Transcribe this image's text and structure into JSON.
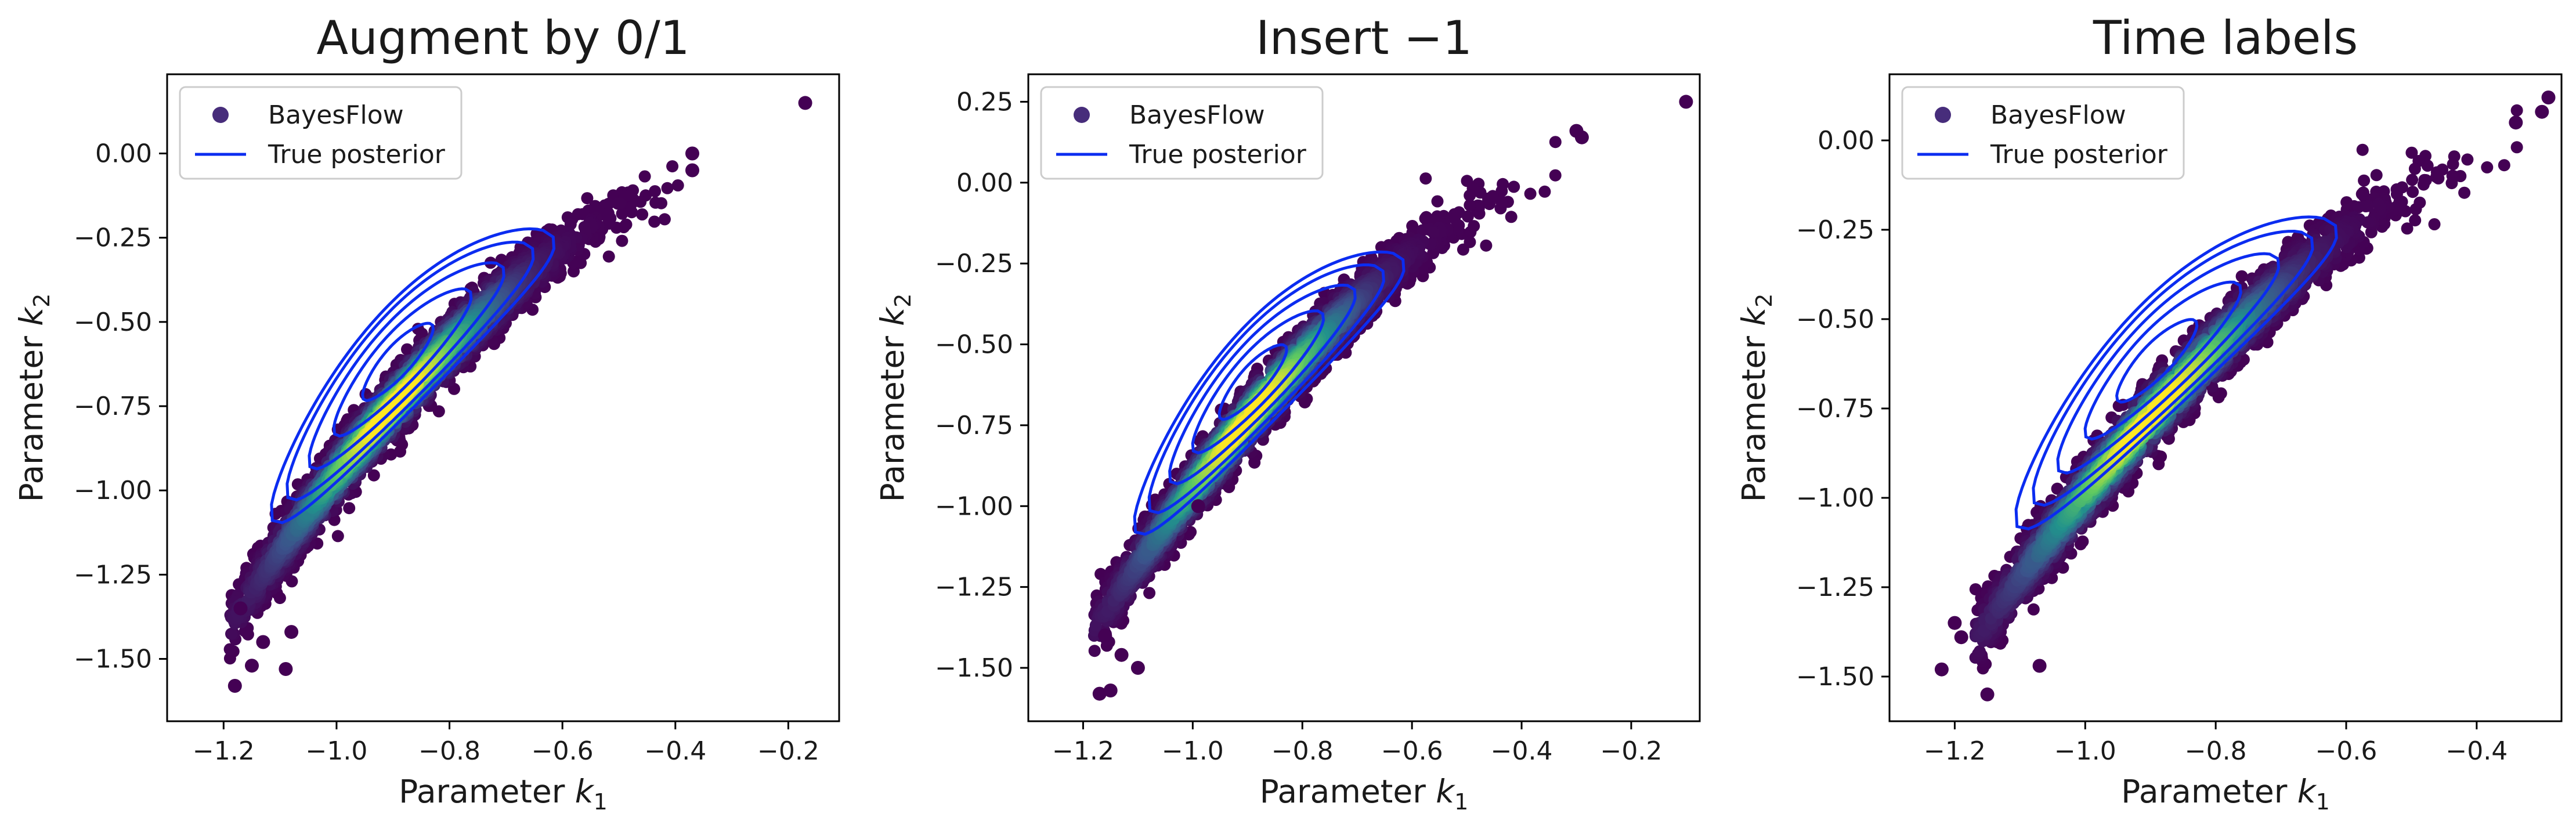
{
  "figure": {
    "legend_position": "upper-left",
    "density_colormap": [
      "#440154",
      "#3b528b",
      "#21918c",
      "#5ec962",
      "#fde725"
    ],
    "contour_color": "#0b2cf0"
  },
  "chart_data": [
    {
      "type": "scatter",
      "title": "Augment by 0/1",
      "xlabel_text": "Parameter ",
      "xlabel_sub": "k",
      "xlabel_subidx": "1",
      "ylabel_text": "Parameter ",
      "ylabel_sub": "k",
      "ylabel_subidx": "2",
      "xlim": [
        -1.3,
        -0.11
      ],
      "ylim": [
        -1.685,
        0.235
      ],
      "xticks": [
        -1.2,
        -1.0,
        -0.8,
        -0.6,
        -0.4,
        -0.2
      ],
      "xtick_labels": [
        "−1.2",
        "−1.0",
        "−0.8",
        "−0.6",
        "−0.4",
        "−0.2"
      ],
      "yticks": [
        0.0,
        -0.25,
        -0.5,
        -0.75,
        -1.0,
        -1.25,
        -1.5
      ],
      "ytick_labels": [
        "0.00",
        "−0.25",
        "−0.50",
        "−0.75",
        "−1.00",
        "−1.25",
        "−1.50"
      ],
      "legend": [
        "BayesFlow",
        "True posterior"
      ],
      "series": [
        {
          "name": "BayesFlow",
          "kind": "points",
          "band": {
            "x_start": -1.19,
            "x_end": -0.36,
            "center_start": -1.4,
            "center_end": -0.05,
            "curvature": 0.58,
            "half_width": 0.085
          },
          "outliers": [
            [
              -0.17,
              0.15
            ],
            [
              -0.37,
              0.0
            ],
            [
              -0.37,
              -0.05
            ],
            [
              -1.18,
              -1.58
            ],
            [
              -1.15,
              -1.52
            ],
            [
              -1.13,
              -1.45
            ],
            [
              -1.09,
              -1.53
            ],
            [
              -1.17,
              -1.35
            ],
            [
              -1.08,
              -1.42
            ]
          ]
        },
        {
          "name": "True posterior",
          "kind": "contours",
          "curve": {
            "x_start": -1.13,
            "x_end": -0.595,
            "center_start": -1.13,
            "center_end": -0.23,
            "curvature": 0.52,
            "peak_x": -0.9
          },
          "levels": [
            0.07,
            0.19,
            0.36,
            0.55,
            0.77
          ]
        }
      ]
    },
    {
      "type": "scatter",
      "title": "Insert −1",
      "xlabel_text": "Parameter ",
      "xlabel_sub": "k",
      "xlabel_subidx": "1",
      "ylabel_text": "Parameter ",
      "ylabel_sub": "k",
      "ylabel_subidx": "2",
      "xlim": [
        -1.3,
        -0.075
      ],
      "ylim": [
        -1.665,
        0.335
      ],
      "xticks": [
        -1.2,
        -1.0,
        -0.8,
        -0.6,
        -0.4,
        -0.2
      ],
      "xtick_labels": [
        "−1.2",
        "−1.0",
        "−0.8",
        "−0.6",
        "−0.4",
        "−0.2"
      ],
      "yticks": [
        0.25,
        0.0,
        -0.25,
        -0.5,
        -0.75,
        -1.0,
        -1.25,
        -1.5
      ],
      "ytick_labels": [
        "0.25",
        "0.00",
        "−0.25",
        "−0.50",
        "−0.75",
        "−1.00",
        "−1.25",
        "−1.50"
      ],
      "legend": [
        "BayesFlow",
        "True posterior"
      ],
      "series": [
        {
          "name": "BayesFlow",
          "kind": "points",
          "band": {
            "x_start": -1.18,
            "x_end": -0.3,
            "center_start": -1.38,
            "center_end": 0.1,
            "curvature": 0.55,
            "half_width": 0.085
          },
          "outliers": [
            [
              -0.1,
              0.25
            ],
            [
              -0.3,
              0.16
            ],
            [
              -0.29,
              0.14
            ],
            [
              -1.17,
              -1.58
            ],
            [
              -1.15,
              -1.57
            ],
            [
              -1.1,
              -1.5
            ],
            [
              -1.13,
              -1.46
            ],
            [
              -0.99,
              -1.0
            ],
            [
              -1.16,
              -1.4
            ]
          ]
        },
        {
          "name": "True posterior",
          "kind": "contours",
          "curve": {
            "x_start": -1.12,
            "x_end": -0.595,
            "center_start": -1.12,
            "center_end": -0.22,
            "curvature": 0.52,
            "peak_x": -0.9
          },
          "levels": [
            0.07,
            0.19,
            0.36,
            0.55,
            0.77
          ]
        }
      ]
    },
    {
      "type": "scatter",
      "title": "Time labels",
      "xlabel_text": "Parameter ",
      "xlabel_sub": "k",
      "xlabel_subidx": "1",
      "ylabel_text": "Parameter ",
      "ylabel_sub": "k",
      "ylabel_subidx": "2",
      "xlim": [
        -1.3,
        -0.27
      ],
      "ylim": [
        -1.625,
        0.185
      ],
      "xticks": [
        -1.2,
        -1.0,
        -0.8,
        -0.6,
        -0.4
      ],
      "xtick_labels": [
        "−1.2",
        "−1.0",
        "−0.8",
        "−0.6",
        "−0.4"
      ],
      "yticks": [
        0.0,
        -0.25,
        -0.5,
        -0.75,
        -1.0,
        -1.25,
        -1.5
      ],
      "ytick_labels": [
        "0.00",
        "−0.25",
        "−0.50",
        "−0.75",
        "−1.00",
        "−1.25",
        "−1.50"
      ],
      "legend": [
        "BayesFlow",
        "True posterior"
      ],
      "series": [
        {
          "name": "BayesFlow",
          "kind": "points",
          "band": {
            "x_start": -1.17,
            "x_end": -0.31,
            "center_start": -1.4,
            "center_end": 0.05,
            "curvature": 0.55,
            "half_width": 0.085
          },
          "outliers": [
            [
              -0.29,
              0.12
            ],
            [
              -0.3,
              0.08
            ],
            [
              -0.34,
              0.05
            ],
            [
              -1.22,
              -1.48
            ],
            [
              -1.15,
              -1.55
            ],
            [
              -1.07,
              -1.47
            ],
            [
              -1.2,
              -1.35
            ],
            [
              -1.19,
              -1.39
            ]
          ]
        },
        {
          "name": "True posterior",
          "kind": "contours",
          "curve": {
            "x_start": -1.12,
            "x_end": -0.595,
            "center_start": -1.12,
            "center_end": -0.22,
            "curvature": 0.52,
            "peak_x": -0.9
          },
          "levels": [
            0.07,
            0.19,
            0.36,
            0.55,
            0.77
          ]
        }
      ]
    }
  ]
}
